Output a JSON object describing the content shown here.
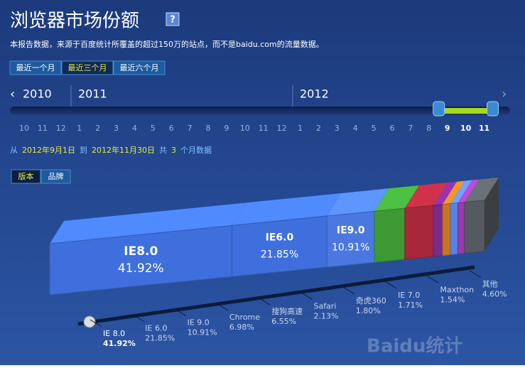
{
  "chart_data": {
    "type": "bar3d",
    "title": "浏览器市场份额",
    "subtitle": "本报告数据，来源于百度统计所覆盖的超过150万的站点，而不是baidu.com的流量数据。",
    "categories": [
      "IE 8.0",
      "IE 6.0",
      "IE 9.0",
      "Chrome",
      "搜狗高速",
      "Safari",
      "奇虎360",
      "IE 7.0",
      "Maxthon",
      "其他"
    ],
    "values": [
      41.92,
      21.85,
      10.91,
      6.98,
      6.55,
      2.13,
      1.8,
      1.71,
      1.54,
      4.6
    ],
    "value_labels": [
      "41.92%",
      "21.85%",
      "10.91%",
      "6.98%",
      "6.55%",
      "2.13%",
      "1.80%",
      "1.71%",
      "1.54%",
      "4.60%"
    ],
    "inner_labels": [
      "IE8.0",
      "IE6.0",
      "IE9.0"
    ],
    "colors": [
      "#3f6fdc",
      "#3f6fdc",
      "#4a78e0",
      "#3d9a35",
      "#a8283a",
      "#7a2a8c",
      "#c8761e",
      "#5a82e6",
      "#9a3ab0",
      "#555a60"
    ]
  },
  "ui": {
    "help": "?",
    "ranges": [
      "最近一个月",
      "最近三个月",
      "最近六个月"
    ],
    "active_range": 1,
    "years": [
      "2010",
      "2011",
      "2012"
    ],
    "months": [
      "10",
      "11",
      "12",
      "1",
      "2",
      "3",
      "4",
      "5",
      "6",
      "7",
      "8",
      "9",
      "10",
      "11",
      "12",
      "1",
      "2",
      "3",
      "4",
      "5",
      "6",
      "7",
      "8",
      "9",
      "10",
      "11"
    ],
    "selected_from": 23,
    "date_text": [
      "从",
      "2012年9月1日",
      "到",
      "2012年11月30日",
      "共",
      "3",
      "个月数据"
    ],
    "tabs": [
      "版本",
      "品牌"
    ],
    "active_tab": 0,
    "watermark": "Baidu统计"
  }
}
